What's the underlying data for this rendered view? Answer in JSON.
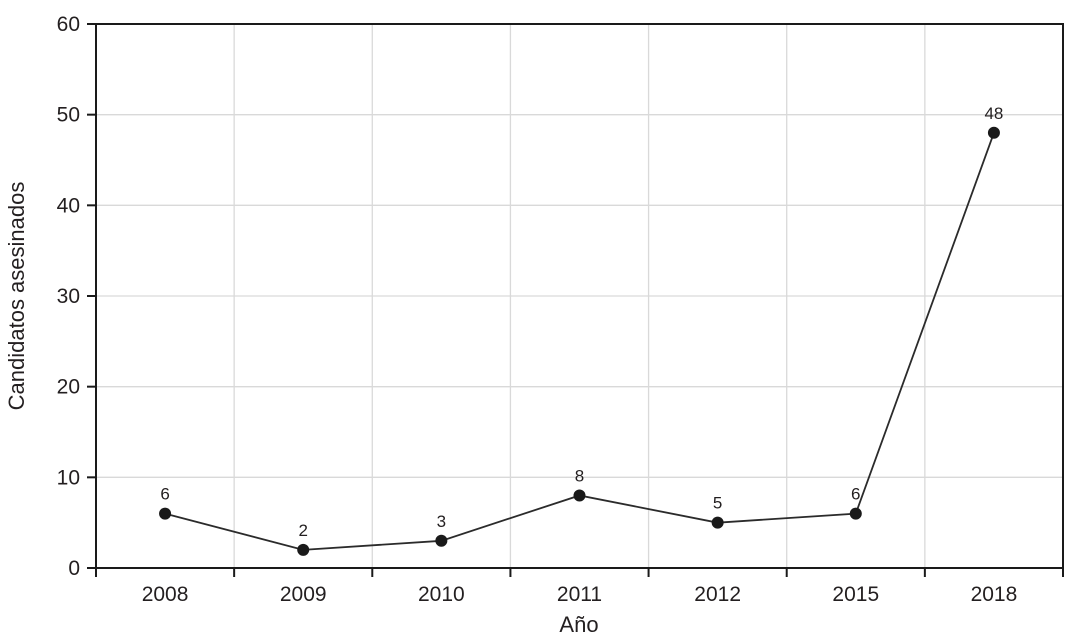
{
  "chart_data": {
    "type": "line",
    "title": "",
    "categories": [
      "2008",
      "2009",
      "2010",
      "2011",
      "2012",
      "2015",
      "2018"
    ],
    "values": [
      6,
      2,
      3,
      8,
      5,
      6,
      48
    ],
    "data_labels": [
      "6",
      "2",
      "3",
      "8",
      "5",
      "6",
      "48"
    ],
    "xlabel": "Año",
    "ylabel": "Candidatos asesinados",
    "yticks": [
      0,
      10,
      20,
      30,
      40,
      50,
      60
    ],
    "ylim": [
      0,
      60
    ],
    "grid": "on",
    "legend": "none",
    "colors": {
      "line": "#2b2b2b",
      "point": "#1a1a1a",
      "grid": "#d9d9d9",
      "axis": "#1a1a1a",
      "text": "#231f20"
    }
  }
}
